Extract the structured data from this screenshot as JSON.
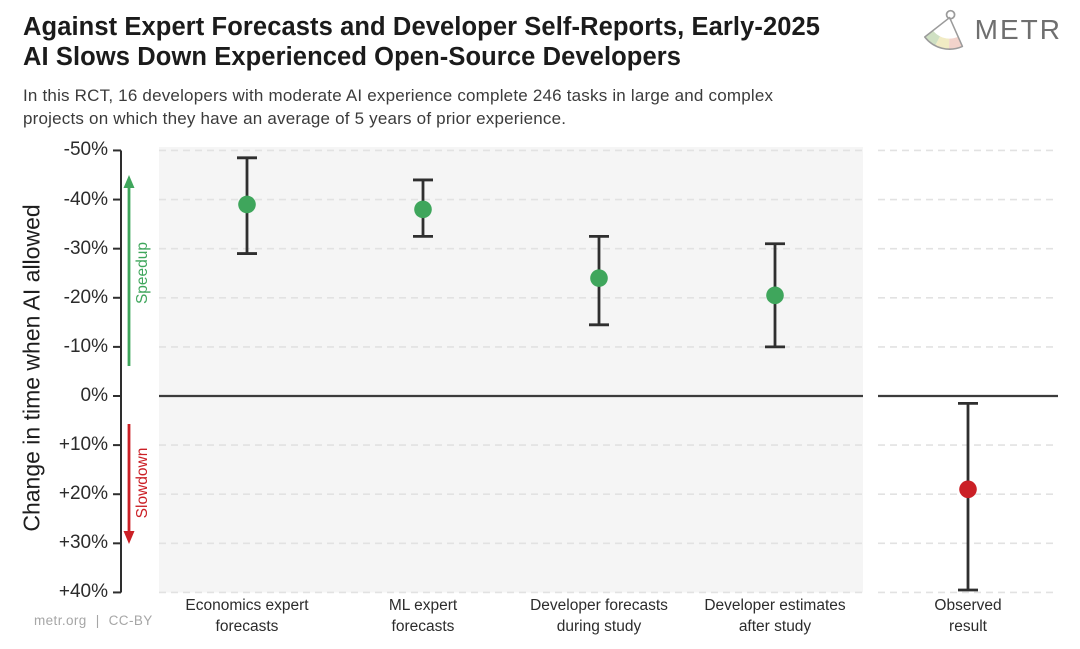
{
  "header": {
    "title_lines": [
      "Against Expert Forecasts and Developer Self-Reports, Early-2025",
      "AI Slows Down Experienced Open-Source Developers"
    ],
    "subtitle_lines": [
      "In this RCT, 16 developers with moderate AI experience complete 246 tasks in large and complex",
      "projects on which they have an average of 5 years of prior experience."
    ],
    "logo_text": "METR",
    "logo_icon": "metr-fan-icon"
  },
  "footer": {
    "site": "metr.org",
    "divider": "|",
    "license": "CC-BY"
  },
  "colors": {
    "speedup_green": "#3fa65c",
    "slowdown_red": "#cb2026",
    "point_green": "#3fa65c",
    "point_red": "#cb2026",
    "panel_bg": "#f5f5f5",
    "observed_panel_bg": "#ffffff",
    "gridline": "#e2e2e2",
    "zero_line": "#3c3c3c",
    "error_bar": "#2f2f2f",
    "axis": "#2e2e2e",
    "title_text": "#1b1b1b",
    "subtitle_text": "#3b3b3b",
    "tick_text": "#2b2b2b",
    "footer_text": "#a6a6a6",
    "logo_text_color": "#6f6f6f"
  },
  "chart_data": {
    "type": "scatter",
    "subtype": "point-estimates-with-error-bars",
    "title": "Against Expert Forecasts and Developer Self-Reports, Early-2025 AI Slows Down Experienced Open-Source Developers",
    "ylabel": "Change in time when AI allowed",
    "y_unit": "percent",
    "ylim": [
      -50,
      40
    ],
    "y_axis_inverted": true,
    "grid": "horizontal dashed",
    "legend": "none",
    "yticks": [
      {
        "value": -50,
        "label": "-50%"
      },
      {
        "value": -40,
        "label": "-40%"
      },
      {
        "value": -30,
        "label": "-30%"
      },
      {
        "value": -20,
        "label": "-20%"
      },
      {
        "value": -10,
        "label": "-10%"
      },
      {
        "value": 0,
        "label": "0%"
      },
      {
        "value": 10,
        "label": "+10%"
      },
      {
        "value": 20,
        "label": "+20%"
      },
      {
        "value": 30,
        "label": "+30%"
      },
      {
        "value": 40,
        "label": "+40%"
      }
    ],
    "annotations": {
      "speedup": {
        "text": "Speedup",
        "direction": "up"
      },
      "slowdown": {
        "text": "Slowdown",
        "direction": "down"
      }
    },
    "panels": [
      {
        "name": "forecasts-and-estimates"
      },
      {
        "name": "observed-result"
      }
    ],
    "series": [
      {
        "panel": 0,
        "category": "Economics expert forecasts",
        "category_lines": [
          "Economics expert",
          "forecasts"
        ],
        "value_pct": -39,
        "ci_pct": [
          -48.5,
          -29
        ],
        "color_key": "point_green"
      },
      {
        "panel": 0,
        "category": "ML expert forecasts",
        "category_lines": [
          "ML expert",
          "forecasts"
        ],
        "value_pct": -38,
        "ci_pct": [
          -44,
          -32.5
        ],
        "color_key": "point_green"
      },
      {
        "panel": 0,
        "category": "Developer forecasts during study",
        "category_lines": [
          "Developer forecasts",
          "during study"
        ],
        "value_pct": -24,
        "ci_pct": [
          -32.5,
          -14.5
        ],
        "color_key": "point_green"
      },
      {
        "panel": 0,
        "category": "Developer estimates after study",
        "category_lines": [
          "Developer estimates",
          "after study"
        ],
        "value_pct": -20.5,
        "ci_pct": [
          -31,
          -10
        ],
        "color_key": "point_green"
      },
      {
        "panel": 1,
        "category": "Observed result",
        "category_lines": [
          "Observed",
          "result"
        ],
        "value_pct": 19,
        "ci_pct": [
          1.5,
          39.5
        ],
        "color_key": "point_red"
      }
    ]
  }
}
